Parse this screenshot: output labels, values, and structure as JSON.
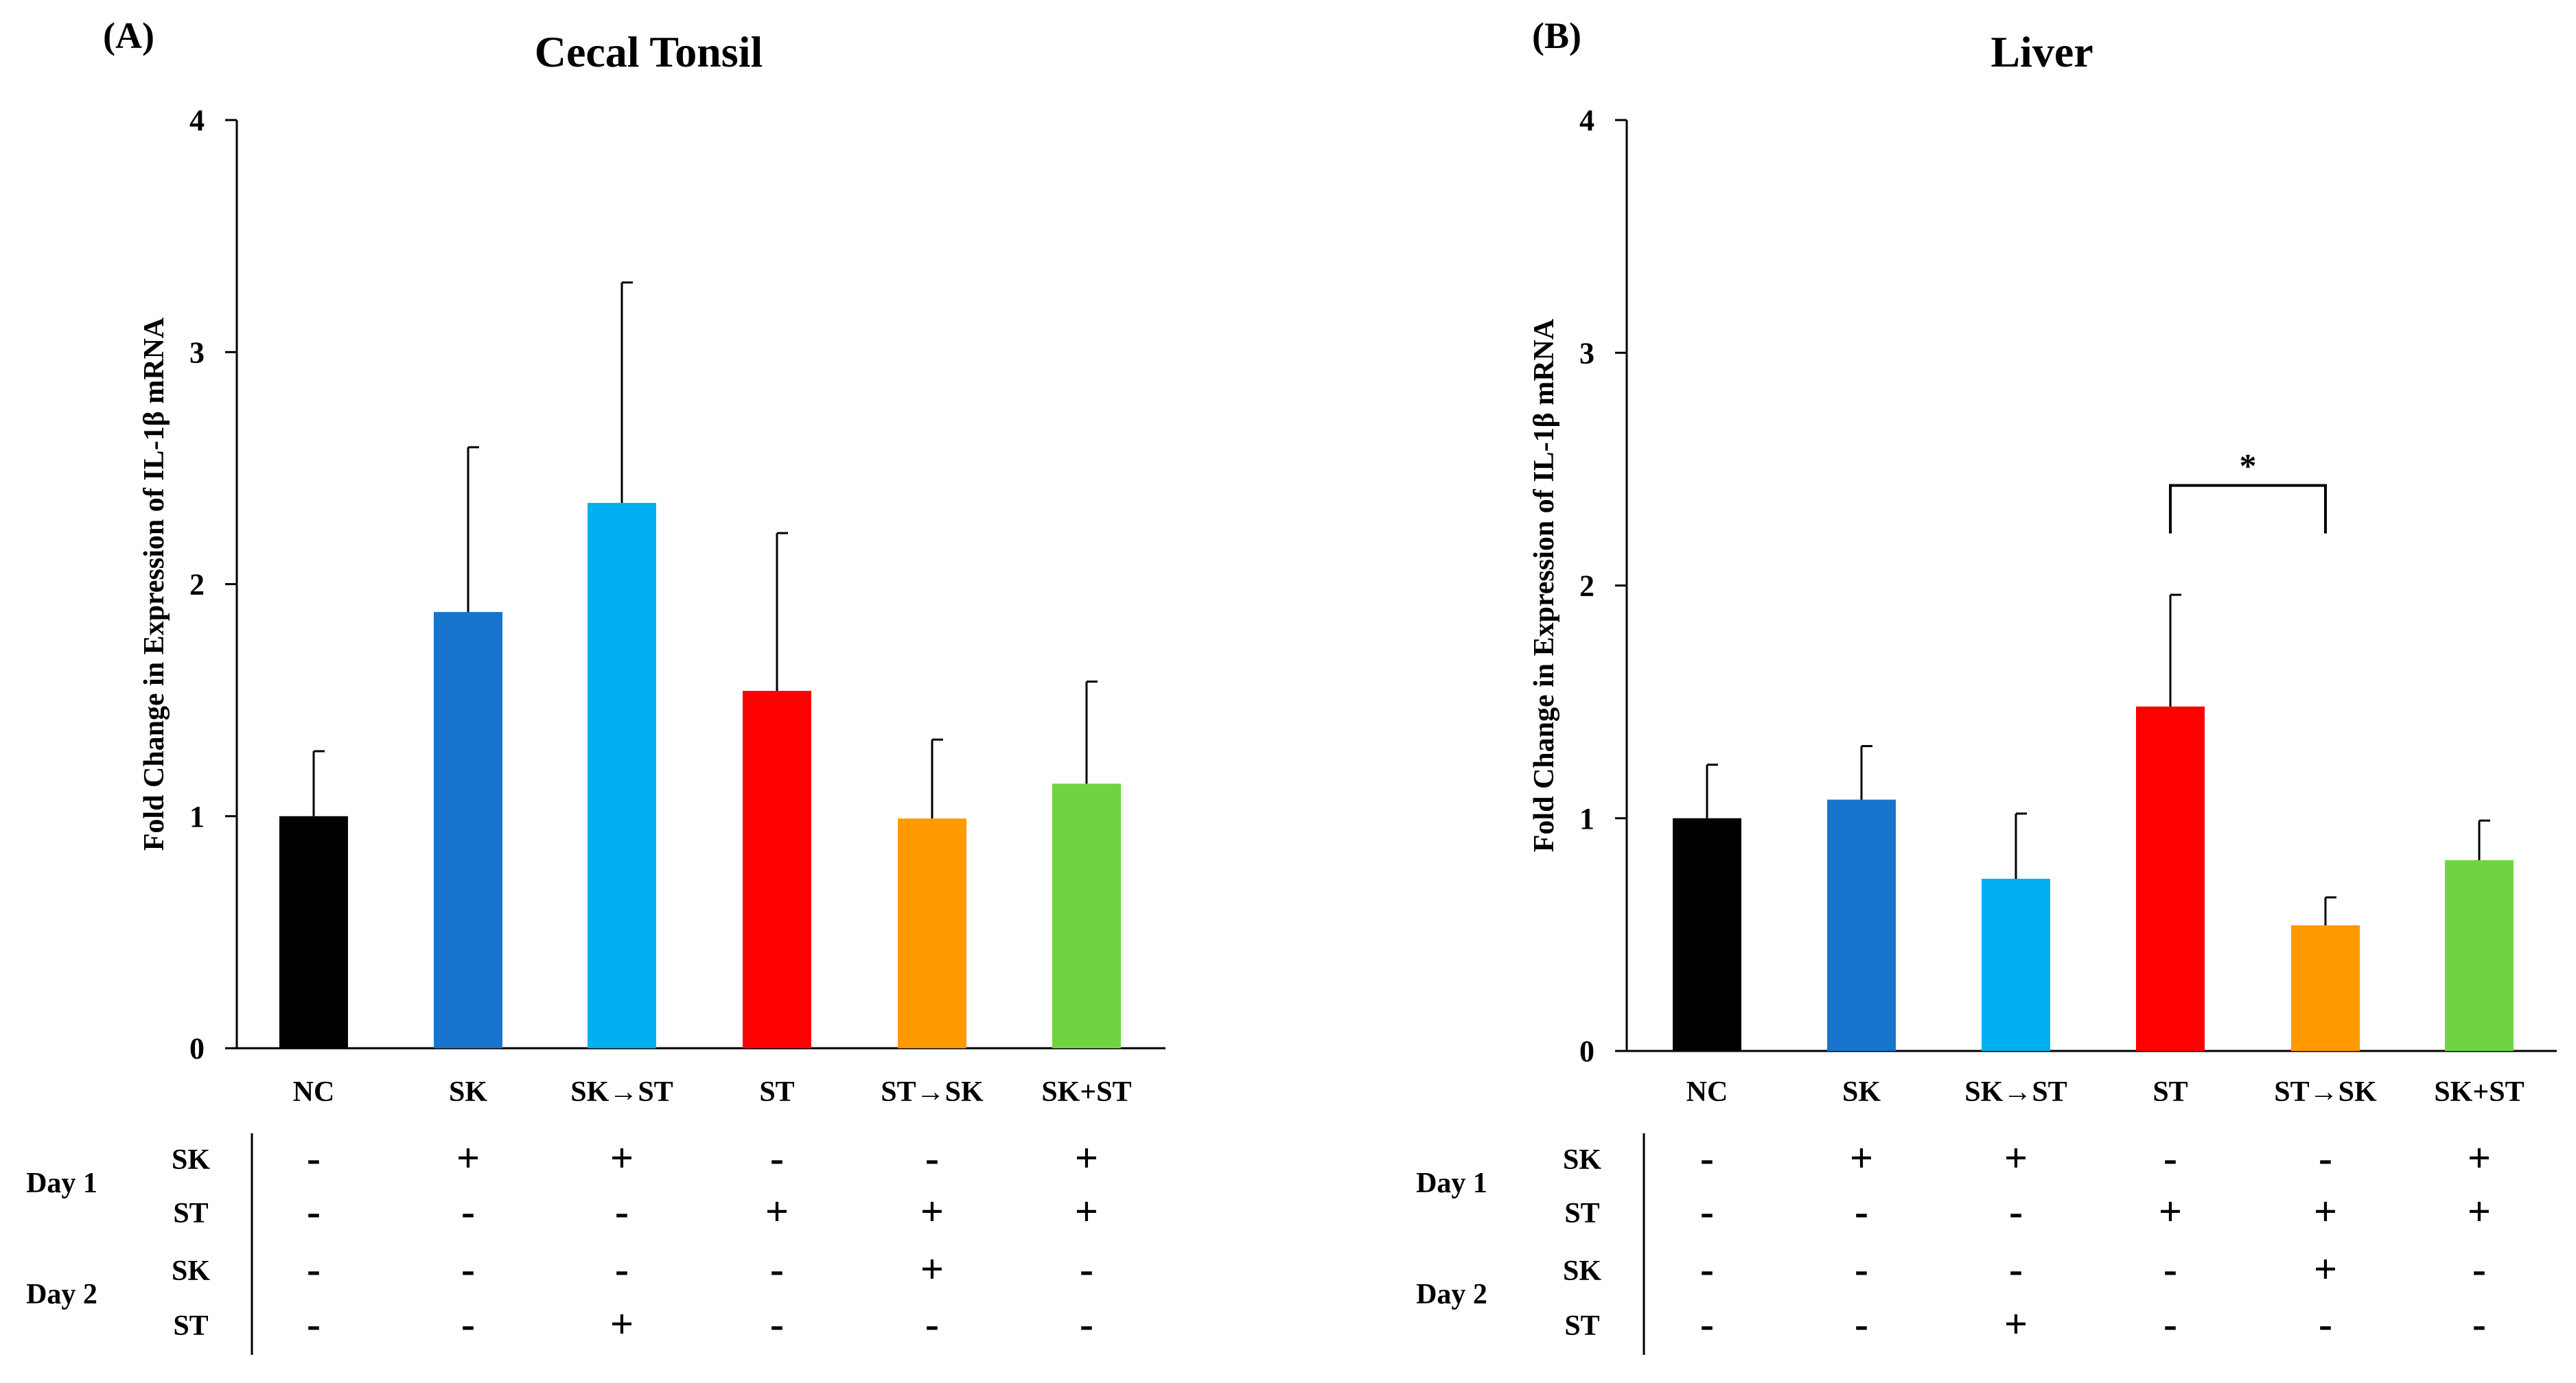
{
  "chart_data": [
    {
      "type": "bar",
      "panel_label": "(A)",
      "title": "Cecal Tonsil",
      "ylabel": "Fold Change in Expression of IL-1β mRNA",
      "xlabel": "",
      "ylim": [
        0,
        4
      ],
      "yticks": [
        "0",
        "1",
        "2",
        "3",
        "4"
      ],
      "grid": false,
      "categories": [
        "NC",
        "SK",
        "SK→ST",
        "ST",
        "ST→SK",
        "SK+ST"
      ],
      "values": [
        1.0,
        1.88,
        2.35,
        1.54,
        0.99,
        1.14
      ],
      "errors": [
        0.28,
        0.71,
        0.95,
        0.68,
        0.34,
        0.44
      ],
      "colors": [
        "#000000",
        "#1874CD",
        "#00B0F0",
        "#FF0000",
        "#FF9900",
        "#70D442"
      ],
      "significance": [],
      "treatment_table": {
        "groups": [
          {
            "label": "Day 1",
            "rows": [
              {
                "label": "SK",
                "marks": [
                  "-",
                  "+",
                  "+",
                  "-",
                  "-",
                  "+"
                ]
              },
              {
                "label": "ST",
                "marks": [
                  "-",
                  "-",
                  "-",
                  "+",
                  "+",
                  "+"
                ]
              }
            ]
          },
          {
            "label": "Day 2",
            "rows": [
              {
                "label": "SK",
                "marks": [
                  "-",
                  "-",
                  "-",
                  "-",
                  "+",
                  "-"
                ]
              },
              {
                "label": "ST",
                "marks": [
                  "-",
                  "-",
                  "+",
                  "-",
                  "-",
                  "-"
                ]
              }
            ]
          }
        ]
      }
    },
    {
      "type": "bar",
      "panel_label": "(B)",
      "title": "Liver",
      "ylabel": "Fold Change in Expression of IL-1β mRNA",
      "xlabel": "",
      "ylim": [
        0,
        4
      ],
      "yticks": [
        "0",
        "1",
        "2",
        "3",
        "4"
      ],
      "grid": false,
      "categories": [
        "NC",
        "SK",
        "SK→ST",
        "ST",
        "ST→SK",
        "SK+ST"
      ],
      "values": [
        1.0,
        1.08,
        0.74,
        1.48,
        0.54,
        0.82
      ],
      "errors": [
        0.23,
        0.23,
        0.28,
        0.48,
        0.12,
        0.17
      ],
      "colors": [
        "#000000",
        "#1874CD",
        "#00B0F0",
        "#FF0000",
        "#FF9900",
        "#70D442"
      ],
      "significance": [
        {
          "from": 3,
          "to": 4,
          "y": 2.43,
          "label": "*"
        }
      ],
      "treatment_table": {
        "groups": [
          {
            "label": "Day 1",
            "rows": [
              {
                "label": "SK",
                "marks": [
                  "-",
                  "+",
                  "+",
                  "-",
                  "-",
                  "+"
                ]
              },
              {
                "label": "ST",
                "marks": [
                  "-",
                  "-",
                  "-",
                  "+",
                  "+",
                  "+"
                ]
              }
            ]
          },
          {
            "label": "Day 2",
            "rows": [
              {
                "label": "SK",
                "marks": [
                  "-",
                  "-",
                  "-",
                  "-",
                  "+",
                  "-"
                ]
              },
              {
                "label": "ST",
                "marks": [
                  "-",
                  "-",
                  "+",
                  "-",
                  "-",
                  "-"
                ]
              }
            ]
          }
        ]
      }
    }
  ]
}
